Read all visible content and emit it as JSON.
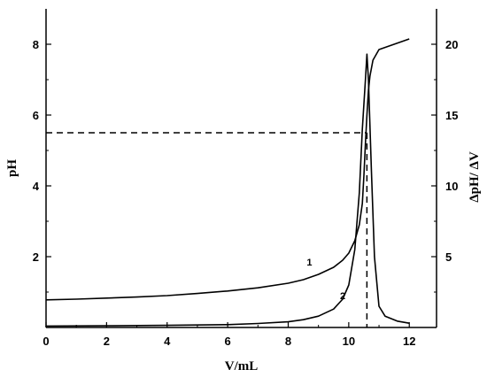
{
  "chart_data": {
    "type": "line",
    "title": "",
    "xlabel": "V/mL",
    "ylabel_left": "pH",
    "ylabel_right": "ΔpH/ ΔV",
    "xlim": [
      0,
      12.9
    ],
    "ylim_left": [
      0,
      9
    ],
    "ylim_right": [
      0,
      22.5
    ],
    "x_ticks": [
      "0",
      "2",
      "4",
      "6",
      "8",
      "10",
      "12"
    ],
    "y_left_ticks": [
      "2",
      "4",
      "6",
      "8"
    ],
    "y_right_ticks": [
      "5",
      "10",
      "15",
      "20"
    ],
    "grid": false,
    "series": [
      {
        "name": "1",
        "axis": "left",
        "x": [
          0,
          1,
          2,
          3,
          4,
          5,
          6,
          7,
          8,
          8.5,
          9,
          9.5,
          9.8,
          10.0,
          10.2,
          10.35,
          10.45,
          10.5,
          10.55,
          10.6,
          10.65,
          10.7,
          10.8,
          11.0,
          11.5,
          12.0
        ],
        "values": [
          0.78,
          0.8,
          0.83,
          0.86,
          0.9,
          0.96,
          1.03,
          1.12,
          1.25,
          1.35,
          1.5,
          1.7,
          1.9,
          2.1,
          2.45,
          2.9,
          3.5,
          4.3,
          5.2,
          6.0,
          6.7,
          7.1,
          7.55,
          7.85,
          8.0,
          8.15
        ]
      },
      {
        "name": "2",
        "axis": "right",
        "x": [
          0,
          2,
          4,
          6,
          7,
          8,
          8.5,
          9,
          9.5,
          9.8,
          10.0,
          10.2,
          10.35,
          10.45,
          10.55,
          10.6,
          10.65,
          10.75,
          10.85,
          11.0,
          11.2,
          11.6,
          12.0
        ],
        "values": [
          0.1,
          0.12,
          0.15,
          0.2,
          0.28,
          0.4,
          0.55,
          0.8,
          1.3,
          2.0,
          3.0,
          5.5,
          9.5,
          14.0,
          17.5,
          19.3,
          17.5,
          11.0,
          5.0,
          1.5,
          0.8,
          0.45,
          0.3
        ]
      }
    ],
    "annotations": {
      "dashed_horizontal_ph": 5.5,
      "dashed_vertical_x": 10.6,
      "curve_labels": [
        {
          "text": "1",
          "x": 8.7,
          "y_left": 1.75
        },
        {
          "text": "2",
          "x": 9.8,
          "y_left": 0.8
        }
      ]
    }
  }
}
